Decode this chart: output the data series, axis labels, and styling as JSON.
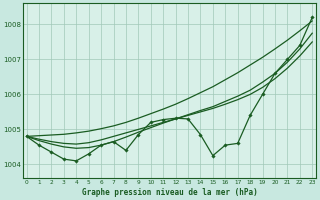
{
  "background_color": "#c8e8e0",
  "plot_bg_color": "#d8f0e8",
  "grid_color": "#a0c8b8",
  "line_color": "#1a5c22",
  "xlabel": "Graphe pression niveau de la mer (hPa)",
  "ylabel_ticks": [
    1004,
    1005,
    1006,
    1007,
    1008
  ],
  "x_ticks": [
    0,
    1,
    2,
    3,
    4,
    5,
    6,
    7,
    8,
    9,
    10,
    11,
    12,
    13,
    14,
    15,
    16,
    17,
    18,
    19,
    20,
    21,
    22,
    23
  ],
  "xlim": [
    -0.3,
    23.3
  ],
  "ylim": [
    1003.6,
    1008.6
  ],
  "line_jagged": [
    1004.8,
    1004.55,
    1004.35,
    1004.15,
    1004.1,
    1004.3,
    1004.55,
    1004.65,
    1004.4,
    1004.85,
    1005.2,
    1005.28,
    1005.32,
    1005.3,
    1004.85,
    1004.25,
    1004.55,
    1004.6,
    1005.4,
    1006.0,
    1006.6,
    1007.0,
    1007.4,
    1008.2
  ],
  "line_smooth1": [
    1004.8,
    1004.72,
    1004.65,
    1004.6,
    1004.58,
    1004.62,
    1004.7,
    1004.8,
    1004.9,
    1005.0,
    1005.1,
    1005.2,
    1005.3,
    1005.4,
    1005.5,
    1005.6,
    1005.72,
    1005.85,
    1006.0,
    1006.2,
    1006.45,
    1006.75,
    1007.1,
    1007.5
  ],
  "line_smooth2": [
    1004.8,
    1004.68,
    1004.58,
    1004.5,
    1004.46,
    1004.48,
    1004.55,
    1004.65,
    1004.78,
    1004.92,
    1005.05,
    1005.18,
    1005.3,
    1005.42,
    1005.54,
    1005.65,
    1005.8,
    1005.95,
    1006.12,
    1006.35,
    1006.6,
    1006.92,
    1007.3,
    1007.75
  ],
  "line_straight": [
    1004.8,
    1004.82,
    1004.84,
    1004.86,
    1004.9,
    1004.95,
    1005.02,
    1005.1,
    1005.2,
    1005.32,
    1005.45,
    1005.58,
    1005.72,
    1005.88,
    1006.05,
    1006.22,
    1006.42,
    1006.62,
    1006.84,
    1007.06,
    1007.3,
    1007.55,
    1007.82,
    1008.1
  ]
}
